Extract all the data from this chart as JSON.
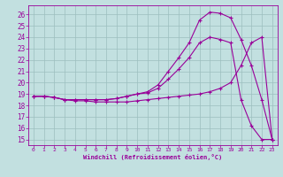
{
  "xlabel": "Windchill (Refroidissement éolien,°C)",
  "bg_color": "#c2e0e0",
  "grid_color": "#9cbebe",
  "line_color": "#990099",
  "xlim": [
    -0.5,
    23.5
  ],
  "ylim": [
    14.5,
    26.8
  ],
  "yticks": [
    15,
    16,
    17,
    18,
    19,
    20,
    21,
    22,
    23,
    24,
    25,
    26
  ],
  "xticks": [
    0,
    1,
    2,
    3,
    4,
    5,
    6,
    7,
    8,
    9,
    10,
    11,
    12,
    13,
    14,
    15,
    16,
    17,
    18,
    19,
    20,
    21,
    22,
    23
  ],
  "line1_x": [
    0,
    1,
    2,
    3,
    4,
    5,
    6,
    7,
    8,
    9,
    10,
    11,
    12,
    13,
    14,
    15,
    16,
    17,
    18,
    19,
    20,
    21,
    22,
    23
  ],
  "line1_y": [
    18.8,
    18.8,
    18.7,
    18.5,
    18.5,
    18.5,
    18.5,
    18.5,
    18.6,
    18.8,
    19.0,
    19.2,
    19.8,
    21.0,
    22.2,
    23.5,
    25.5,
    26.2,
    26.1,
    25.7,
    23.8,
    21.5,
    18.5,
    15.0
  ],
  "line2_x": [
    0,
    1,
    2,
    3,
    4,
    5,
    6,
    7,
    8,
    9,
    10,
    11,
    12,
    13,
    14,
    15,
    16,
    17,
    18,
    19,
    20,
    21,
    22,
    23
  ],
  "line2_y": [
    18.8,
    18.8,
    18.7,
    18.5,
    18.5,
    18.5,
    18.5,
    18.5,
    18.6,
    18.8,
    19.0,
    19.1,
    19.5,
    20.3,
    21.2,
    22.2,
    23.5,
    24.0,
    23.8,
    23.5,
    18.5,
    16.2,
    15.0,
    15.0
  ],
  "line3_x": [
    0,
    1,
    2,
    3,
    4,
    5,
    6,
    7,
    8,
    9,
    10,
    11,
    12,
    13,
    14,
    15,
    16,
    17,
    18,
    19,
    20,
    21,
    22,
    23
  ],
  "line3_y": [
    18.8,
    18.8,
    18.7,
    18.5,
    18.4,
    18.4,
    18.3,
    18.3,
    18.3,
    18.3,
    18.4,
    18.5,
    18.6,
    18.7,
    18.8,
    18.9,
    19.0,
    19.2,
    19.5,
    20.0,
    21.5,
    23.5,
    24.0,
    15.0
  ]
}
